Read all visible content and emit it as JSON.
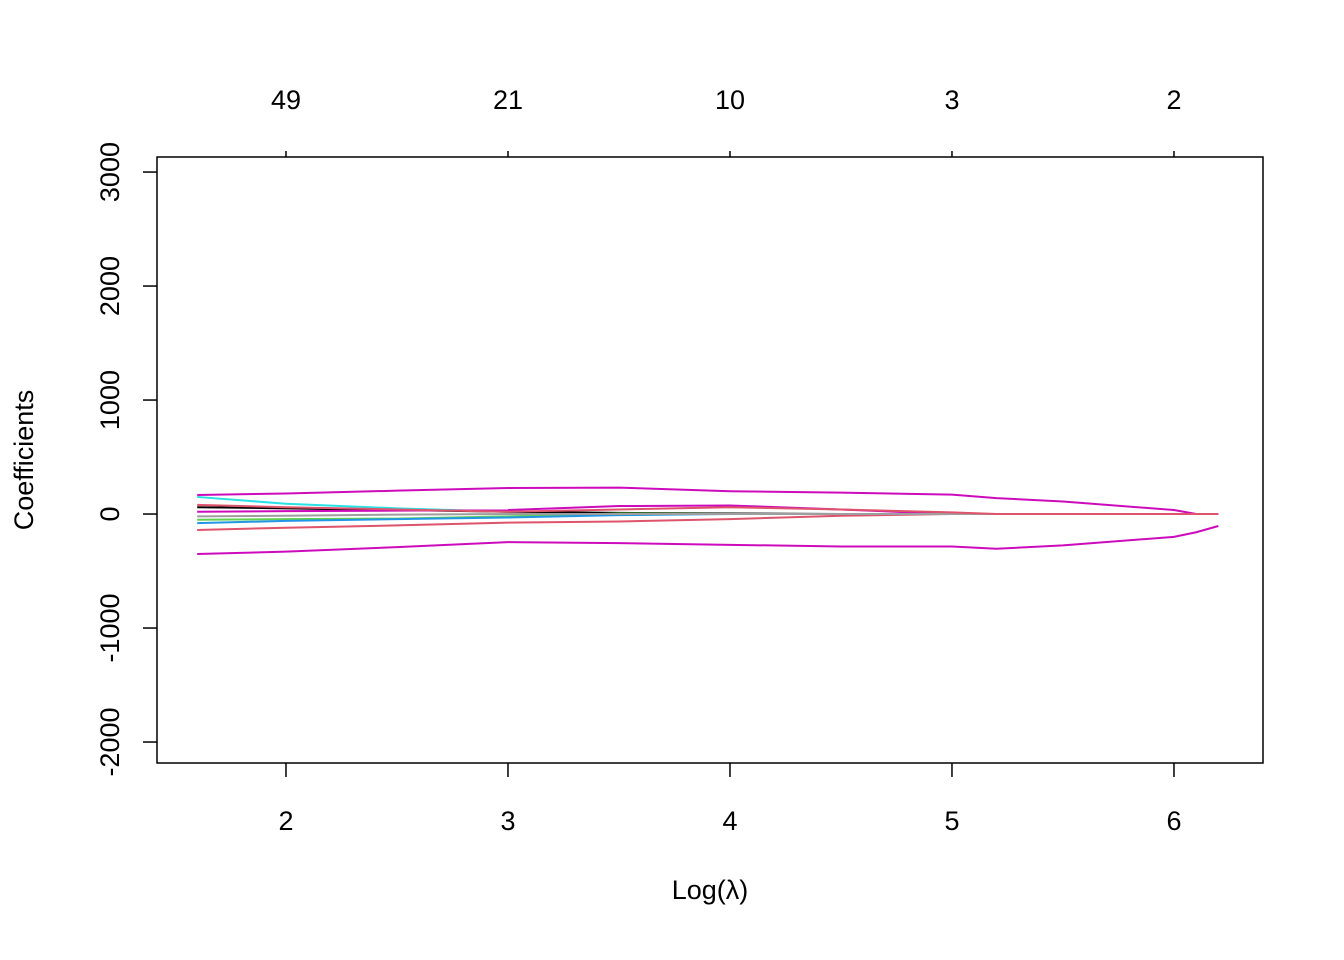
{
  "chart_data": {
    "type": "line",
    "x_label": "Log(λ)",
    "y_label": "Coefficients",
    "x": [
      1.6,
      2.0,
      2.5,
      3.0,
      3.5,
      4.0,
      4.5,
      5.0,
      5.2,
      5.5,
      6.0,
      6.1,
      6.2
    ],
    "series": [
      {
        "color": "#CD0BBC",
        "values": [
          167,
          180,
          205,
          228,
          232,
          200,
          188,
          170,
          140,
          110,
          35,
          0,
          0
        ]
      },
      {
        "color": "#CD0BBC",
        "values": [
          -351,
          -330,
          -290,
          -246,
          -255,
          -270,
          -285,
          -285,
          -305,
          -275,
          -200,
          -160,
          -105
        ]
      },
      {
        "color": "#DF536B",
        "values": [
          -140,
          -120,
          -100,
          -75,
          -65,
          -45,
          -15,
          0,
          0,
          0,
          0,
          0,
          0
        ]
      },
      {
        "color": "#28E2E5",
        "values": [
          150,
          90,
          50,
          20,
          5,
          0,
          0,
          0,
          0,
          0,
          0,
          0,
          0
        ]
      },
      {
        "color": "#000000",
        "values": [
          60,
          50,
          35,
          20,
          10,
          5,
          0,
          0,
          0,
          0,
          0,
          0,
          0
        ]
      },
      {
        "color": "#61D04F",
        "values": [
          -50,
          -45,
          -40,
          -20,
          5,
          0,
          0,
          0,
          0,
          0,
          0,
          0,
          0
        ]
      },
      {
        "color": "#2297E6",
        "values": [
          -80,
          -60,
          -45,
          -30,
          -10,
          0,
          0,
          0,
          0,
          0,
          0,
          0,
          0
        ]
      },
      {
        "color": "#CD0BBC",
        "values": [
          20,
          25,
          30,
          35,
          70,
          75,
          40,
          0,
          0,
          0,
          0,
          0,
          0
        ]
      },
      {
        "color": "#9E9E9E",
        "values": [
          -20,
          -15,
          -5,
          0,
          0,
          0,
          0,
          0,
          0,
          0,
          0,
          0,
          0
        ]
      },
      {
        "color": "#DF536B",
        "values": [
          80,
          60,
          40,
          20,
          40,
          60,
          40,
          15,
          0,
          0,
          0,
          0,
          0
        ]
      }
    ],
    "xlim": [
      1.419,
      6.401
    ],
    "ylim": [
      -2184,
      3132
    ],
    "xticks": [
      2,
      3,
      4,
      5,
      6
    ],
    "top_ticks": [
      {
        "value": 2,
        "label": "49"
      },
      {
        "value": 3,
        "label": "21"
      },
      {
        "value": 4,
        "label": "10"
      },
      {
        "value": 5,
        "label": "3"
      },
      {
        "value": 6,
        "label": "2"
      }
    ],
    "yticks": [
      -2000,
      -1000,
      0,
      1000,
      2000,
      3000
    ]
  }
}
